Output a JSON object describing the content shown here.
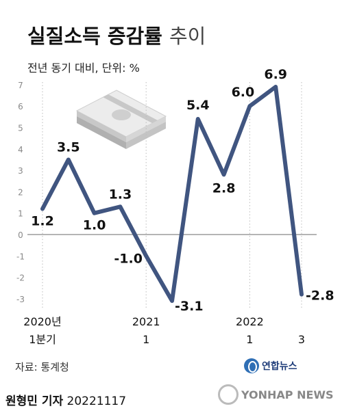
{
  "title_bold": "실질소득 증감률",
  "title_light": "추이",
  "unit": "전년 동기 대비, 단위: %",
  "source": "자료: 통계청",
  "logo_text": "연합뉴스",
  "reporter": {
    "name": "원형민 기자",
    "date": "20221117"
  },
  "watermark": "YONHAP NEWS",
  "colors": {
    "line": "#405580",
    "axis": "#888888",
    "grid": "#bbbbbb",
    "tick_text": "#888888",
    "label_text": "#111111"
  },
  "chart_data": {
    "type": "line",
    "title": "실질소득 증감률 추이",
    "ylabel": "",
    "ylim": [
      -3,
      7
    ],
    "yticks": [
      -3,
      -2,
      -1,
      0,
      1,
      2,
      3,
      4,
      5,
      6,
      7
    ],
    "points": [
      {
        "value": 1.2,
        "label": "1.2"
      },
      {
        "value": 3.5,
        "label": "3.5"
      },
      {
        "value": 1.0,
        "label": "1.0"
      },
      {
        "value": 1.3,
        "label": "1.3"
      },
      {
        "value": -1.0,
        "label": "-1.0"
      },
      {
        "value": -3.1,
        "label": "-3.1"
      },
      {
        "value": 5.4,
        "label": "5.4"
      },
      {
        "value": 2.8,
        "label": "2.8"
      },
      {
        "value": 6.0,
        "label": "6.0"
      },
      {
        "value": 6.9,
        "label": "6.9"
      },
      {
        "value": -2.8,
        "label": "-2.8"
      }
    ],
    "x_tick_labels": [
      {
        "index": 0,
        "lines": [
          "2020년",
          "1분기"
        ]
      },
      {
        "index": 4,
        "lines": [
          "2021",
          "1"
        ]
      },
      {
        "index": 8,
        "lines": [
          "2022",
          "1"
        ]
      },
      {
        "index": 10,
        "lines": [
          "",
          "3"
        ]
      }
    ]
  }
}
